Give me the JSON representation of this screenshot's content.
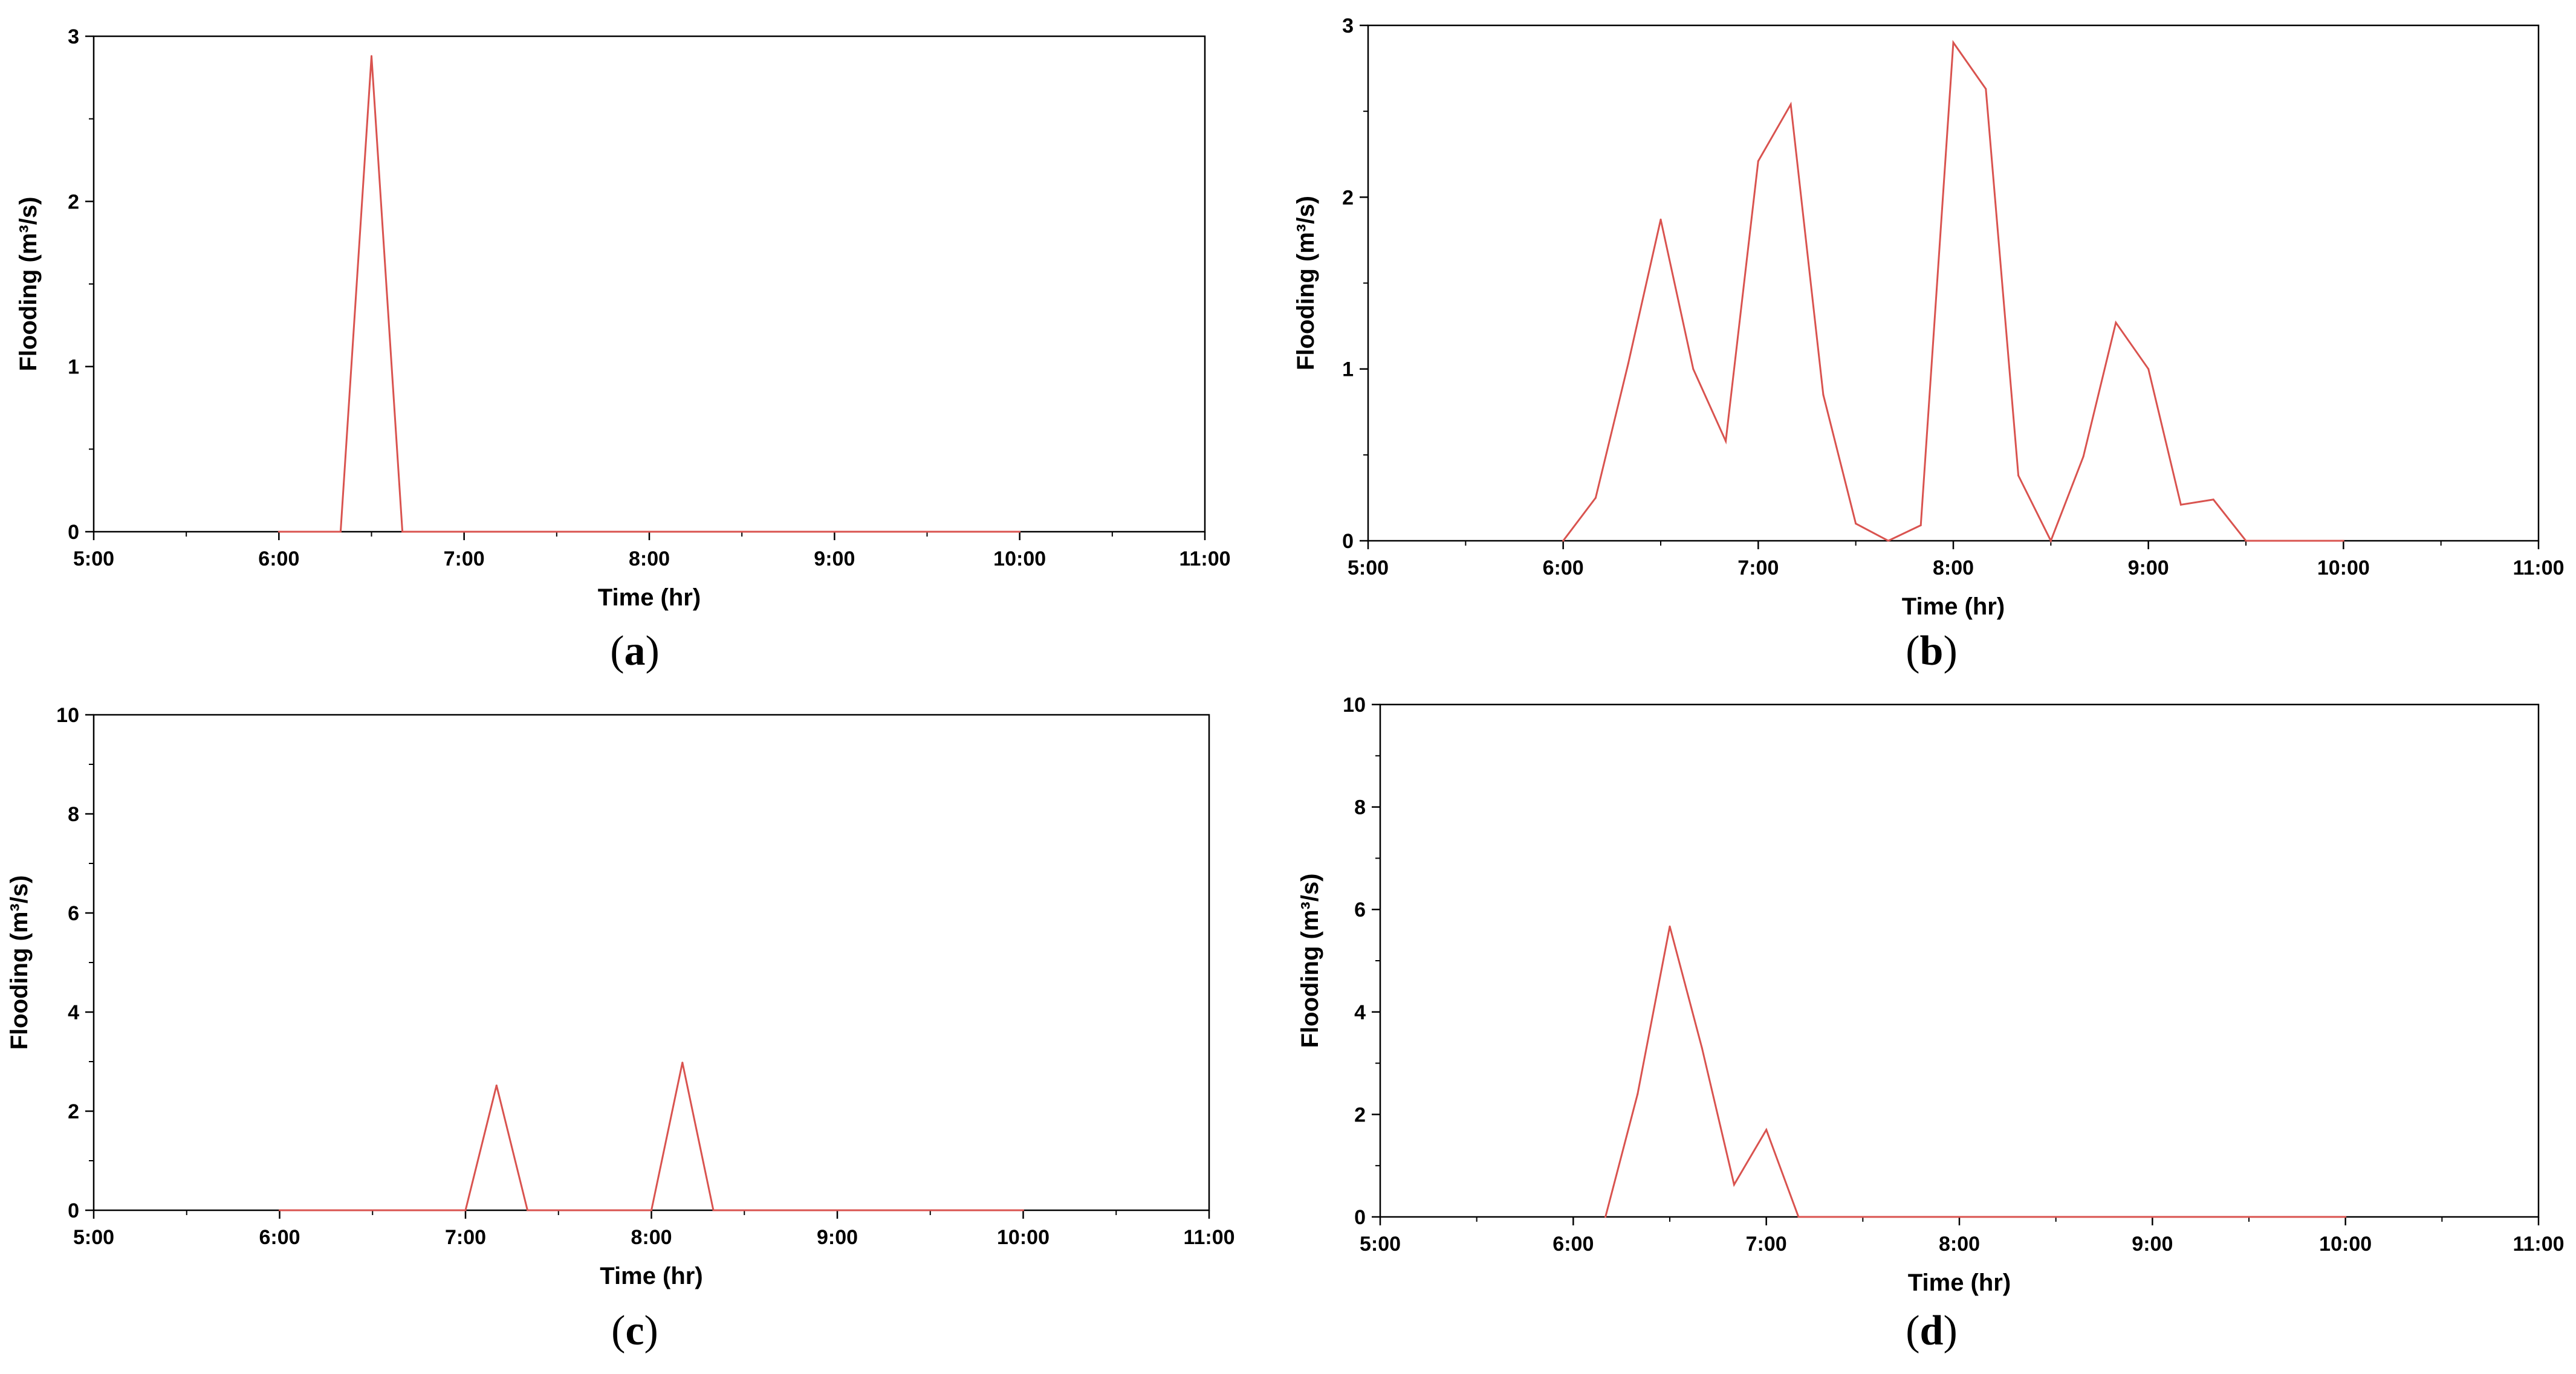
{
  "figure": {
    "panels": [
      {
        "label_open": "(",
        "label_letter": "a",
        "label_close": ")"
      },
      {
        "label_open": "(",
        "label_letter": "b",
        "label_close": ")"
      },
      {
        "label_open": "(",
        "label_letter": "c",
        "label_close": ")"
      },
      {
        "label_open": "(",
        "label_letter": "d",
        "label_close": ")"
      }
    ]
  },
  "colors": {
    "series": "#d9534f",
    "axis": "#000000"
  },
  "chart_data": [
    {
      "type": "line",
      "panel": "a",
      "xlabel": "Time (hr)",
      "ylabel": "Flooding (m³/s)",
      "x_ticks": [
        "5:00",
        "6:00",
        "7:00",
        "8:00",
        "9:00",
        "10:00",
        "11:00"
      ],
      "y_ticks": [
        "0",
        "1",
        "2",
        "3"
      ],
      "xlim": [
        "5:00",
        "11:00"
      ],
      "ylim": [
        0,
        3
      ],
      "y_minor_step": 0.5,
      "grid": false,
      "series": [
        {
          "x": [
            "6:00",
            "6:20",
            "6:30",
            "6:40",
            "7:00",
            "8:00",
            "9:00",
            "10:00"
          ],
          "y": [
            0,
            0,
            2.88,
            0,
            0,
            0,
            0,
            0
          ]
        }
      ]
    },
    {
      "type": "line",
      "panel": "b",
      "xlabel": "Time (hr)",
      "ylabel": "Flooding (m³/s)",
      "x_ticks": [
        "5:00",
        "6:00",
        "7:00",
        "8:00",
        "9:00",
        "10:00",
        "11:00"
      ],
      "y_ticks": [
        "0",
        "1",
        "2",
        "3"
      ],
      "xlim": [
        "5:00",
        "11:00"
      ],
      "ylim": [
        0,
        3
      ],
      "y_minor_step": 0.5,
      "grid": false,
      "series": [
        {
          "x": [
            "6:00",
            "6:10",
            "6:20",
            "6:30",
            "6:40",
            "6:50",
            "7:00",
            "7:10",
            "7:20",
            "7:30",
            "7:40",
            "7:50",
            "8:00",
            "8:10",
            "8:20",
            "8:30",
            "8:40",
            "8:50",
            "9:00",
            "9:10",
            "9:20",
            "9:30",
            "10:00"
          ],
          "y": [
            0,
            0.25,
            1.03,
            1.87,
            1.0,
            0.58,
            2.21,
            2.54,
            0.85,
            0.1,
            0,
            0.09,
            2.9,
            2.63,
            0.38,
            0,
            0.49,
            1.27,
            1.0,
            0.21,
            0.24,
            0,
            0
          ]
        }
      ]
    },
    {
      "type": "line",
      "panel": "c",
      "xlabel": "Time (hr)",
      "ylabel": "Flooding (m³/s)",
      "x_ticks": [
        "5:00",
        "6:00",
        "7:00",
        "8:00",
        "9:00",
        "10:00",
        "11:00"
      ],
      "y_ticks": [
        "0",
        "2",
        "4",
        "6",
        "8",
        "10"
      ],
      "xlim": [
        "5:00",
        "11:00"
      ],
      "ylim": [
        0,
        10
      ],
      "y_minor_step": 1,
      "grid": false,
      "series": [
        {
          "x": [
            "6:00",
            "7:00",
            "7:10",
            "7:20",
            "8:00",
            "8:10",
            "8:20",
            "9:00",
            "10:00"
          ],
          "y": [
            0,
            0,
            2.52,
            0,
            0,
            2.98,
            0,
            0,
            0
          ]
        }
      ]
    },
    {
      "type": "line",
      "panel": "d",
      "xlabel": "Time (hr)",
      "ylabel": "Flooding (m³/s)",
      "x_ticks": [
        "5:00",
        "6:00",
        "7:00",
        "8:00",
        "9:00",
        "10:00",
        "11:00"
      ],
      "y_ticks": [
        "0",
        "2",
        "4",
        "6",
        "8",
        "10"
      ],
      "xlim": [
        "5:00",
        "11:00"
      ],
      "ylim": [
        0,
        10
      ],
      "y_minor_step": 1,
      "grid": false,
      "series": [
        {
          "x": [
            "6:10",
            "6:20",
            "6:30",
            "6:40",
            "6:50",
            "7:00",
            "7:10",
            "8:00",
            "9:00",
            "10:00"
          ],
          "y": [
            0,
            2.4,
            5.67,
            3.3,
            0.63,
            1.7,
            0,
            0,
            0,
            0
          ]
        }
      ]
    }
  ]
}
